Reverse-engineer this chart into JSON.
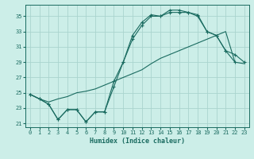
{
  "xlabel": "Humidex (Indice chaleur)",
  "background_color": "#cceee8",
  "line_color": "#1a6b60",
  "grid_color": "#aad4ce",
  "xlim": [
    -0.5,
    23.5
  ],
  "ylim": [
    20.5,
    36.5
  ],
  "xticks": [
    0,
    1,
    2,
    3,
    4,
    5,
    6,
    7,
    8,
    9,
    10,
    11,
    12,
    13,
    14,
    15,
    16,
    17,
    18,
    19,
    20,
    21,
    22,
    23
  ],
  "yticks": [
    21,
    23,
    25,
    27,
    29,
    31,
    33,
    35
  ],
  "line1_x": [
    0,
    1,
    2,
    3,
    4,
    5,
    6,
    7,
    8,
    9,
    10,
    11,
    12,
    13,
    14,
    15,
    16,
    17,
    18,
    19,
    20,
    21,
    22
  ],
  "line1_y": [
    24.8,
    24.2,
    23.5,
    21.5,
    22.8,
    22.8,
    21.2,
    22.5,
    22.5,
    25.8,
    29.0,
    32.0,
    33.8,
    35.0,
    35.0,
    35.8,
    35.8,
    35.5,
    35.0,
    33.0,
    32.5,
    30.5,
    29.0
  ],
  "line2_x": [
    0,
    1,
    2,
    3,
    4,
    5,
    6,
    7,
    8,
    9,
    10,
    11,
    12,
    13,
    14,
    15,
    16,
    17,
    18,
    19,
    20,
    21,
    22,
    23
  ],
  "line2_y": [
    24.8,
    24.2,
    23.8,
    24.2,
    24.5,
    25.0,
    25.2,
    25.5,
    26.0,
    26.5,
    27.0,
    27.5,
    28.0,
    28.8,
    29.5,
    30.0,
    30.5,
    31.0,
    31.5,
    32.0,
    32.5,
    33.0,
    29.0,
    28.8
  ],
  "line3_x": [
    0,
    1,
    2,
    3,
    4,
    5,
    6,
    7,
    8,
    9,
    10,
    11,
    12,
    13,
    14,
    15,
    16,
    17,
    18,
    19,
    20,
    21,
    22,
    23
  ],
  "line3_y": [
    24.8,
    24.2,
    23.5,
    21.5,
    22.8,
    22.8,
    21.2,
    22.5,
    22.5,
    26.5,
    29.0,
    32.5,
    34.2,
    35.2,
    35.0,
    35.5,
    35.5,
    35.5,
    35.2,
    33.0,
    32.5,
    30.5,
    30.0,
    29.0
  ]
}
